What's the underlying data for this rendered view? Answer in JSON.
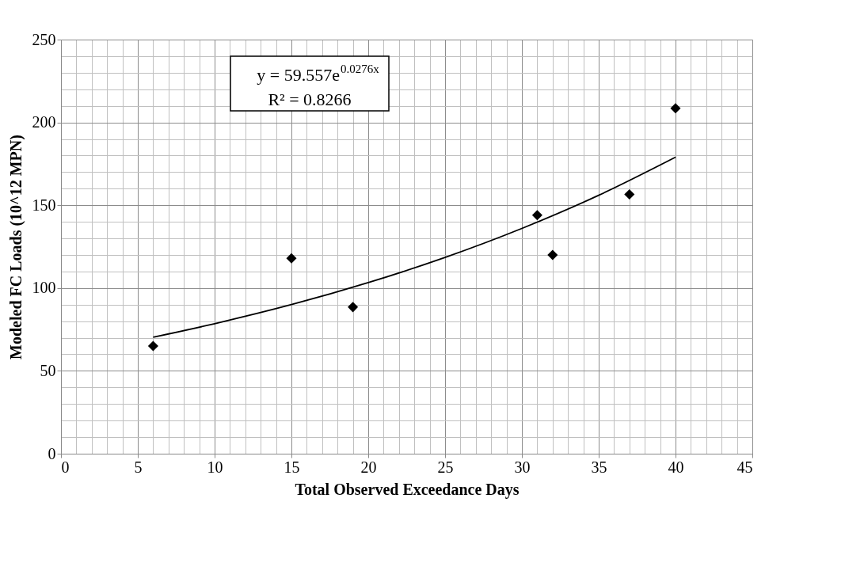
{
  "chart_data": {
    "type": "scatter",
    "xlabel": "Total Observed Exceedance Days",
    "ylabel": "Modeled FC Loads (10^12  MPN)",
    "annotations": [
      "y = 59.557e$^{0.0276x}$",
      "R² = 0.8266"
    ],
    "series": [
      {
        "color": "#000000",
        "marker": "diamond",
        "x": [
          6,
          15,
          19,
          31,
          32,
          37,
          40
        ],
        "values": [
          65,
          118,
          88.5,
          144,
          120,
          156.5,
          208.5
        ]
      },
      {
        "type": "line",
        "color": "#000000",
        "marker": "none",
        "line_style": "solid",
        "x": [
          6,
          10,
          15,
          20,
          25,
          30,
          35,
          40
        ],
        "values": [
          70.3,
          78.5,
          90.0,
          103.3,
          118.5,
          136.0,
          156.0,
          179.0
        ]
      }
    ],
    "xlim": [
      0,
      45
    ],
    "xticks": [
      0,
      {
        "value": 1,
        "label": null
      },
      {
        "value": 2,
        "label": null
      },
      {
        "value": 3,
        "label": null
      },
      {
        "value": 4,
        "label": null
      },
      5,
      {
        "value": 6,
        "label": null
      },
      {
        "value": 7,
        "label": null
      },
      {
        "value": 8,
        "label": null
      },
      {
        "value": 9,
        "label": null
      },
      10,
      {
        "value": 11,
        "label": null
      },
      {
        "value": 12,
        "label": null
      },
      {
        "value": 13,
        "label": null
      },
      {
        "value": 14,
        "label": null
      },
      15,
      {
        "value": 16,
        "label": null
      },
      {
        "value": 17,
        "label": null
      },
      {
        "value": 18,
        "label": null
      },
      {
        "value": 19,
        "label": null
      },
      20,
      {
        "value": 21,
        "label": null
      },
      {
        "value": 22,
        "label": null
      },
      {
        "value": 23,
        "label": null
      },
      {
        "value": 24,
        "label": null
      },
      25,
      {
        "value": 26,
        "label": null
      },
      {
        "value": 27,
        "label": null
      },
      {
        "value": 28,
        "label": null
      },
      {
        "value": 29,
        "label": null
      },
      30,
      {
        "value": 31,
        "label": null
      },
      {
        "value": 32,
        "label": null
      },
      {
        "value": 33,
        "label": null
      },
      {
        "value": 34,
        "label": null
      },
      35,
      {
        "value": 36,
        "label": null
      },
      {
        "value": 37,
        "label": null
      },
      {
        "value": 38,
        "label": null
      },
      {
        "value": 39,
        "label": null
      },
      40,
      {
        "value": 41,
        "label": null
      },
      {
        "value": 42,
        "label": null
      },
      {
        "value": 43,
        "label": null
      },
      {
        "value": 44,
        "label": null
      },
      45
    ],
    "ylim": [
      0,
      250
    ],
    "yticks": [
      0,
      {
        "value": 10,
        "label": null
      },
      {
        "value": 20,
        "label": null
      },
      {
        "value": 30,
        "label": null
      },
      {
        "value": 40,
        "label": null
      },
      50,
      {
        "value": 60,
        "label": null
      },
      {
        "value": 70,
        "label": null
      },
      {
        "value": 80,
        "label": null
      },
      {
        "value": 90,
        "label": null
      },
      100,
      {
        "value": 110,
        "label": null
      },
      {
        "value": 120,
        "label": null
      },
      {
        "value": 130,
        "label": null
      },
      {
        "value": 140,
        "label": null
      },
      150,
      {
        "value": 160,
        "label": null
      },
      {
        "value": 170,
        "label": null
      },
      {
        "value": 180,
        "label": null
      },
      {
        "value": 190,
        "label": null
      },
      200,
      {
        "value": 210,
        "label": null
      },
      {
        "value": 220,
        "label": null
      },
      {
        "value": 230,
        "label": null
      },
      {
        "value": 240,
        "label": null
      },
      250
    ],
    "grid": true
  }
}
